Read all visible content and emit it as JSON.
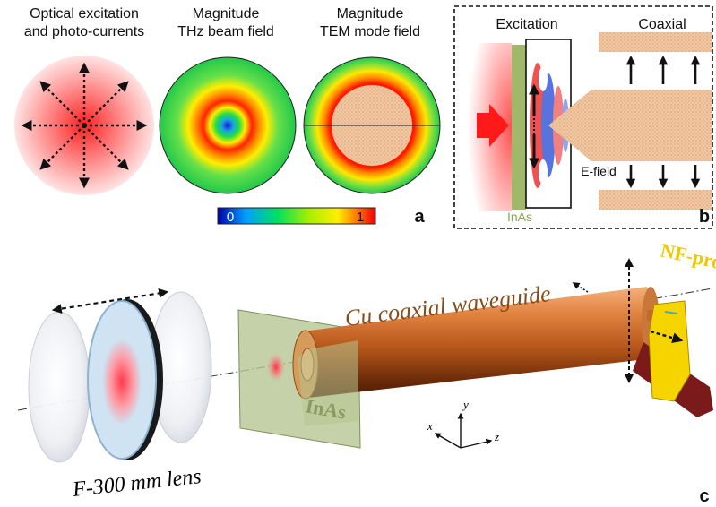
{
  "panel_a": {
    "title1_line1": "Optical excitation",
    "title1_line2": "and photo-currents",
    "title2_line1": "Magnitude",
    "title2_line2": "THz beam field",
    "title3_line1": "Magnitude",
    "title3_line2": "TEM mode field",
    "colorbar_min": "0",
    "colorbar_max": "1",
    "panel_letter": "a"
  },
  "panel_b": {
    "excitation_label": "Excitation",
    "coaxial_label": "Coaxial",
    "efield_label": "E-field",
    "inas_label": "InAs",
    "panel_letter": "b"
  },
  "panel_c": {
    "waveguide_label": "Cu coaxial waveguide",
    "probe_label": "NF-probe",
    "inas_label": "InAs",
    "lens_label": "F-300 mm lens",
    "axis_x": "x",
    "axis_y": "y",
    "axis_z": "z",
    "panel_letter": "c"
  },
  "colors": {
    "waveguide_copper": "#c2631e",
    "probe_yellow": "#f5d400",
    "inas_green": "#9fb86a",
    "excitation_red": "#ff1a1a",
    "coax_tan": "#e8b48a"
  }
}
